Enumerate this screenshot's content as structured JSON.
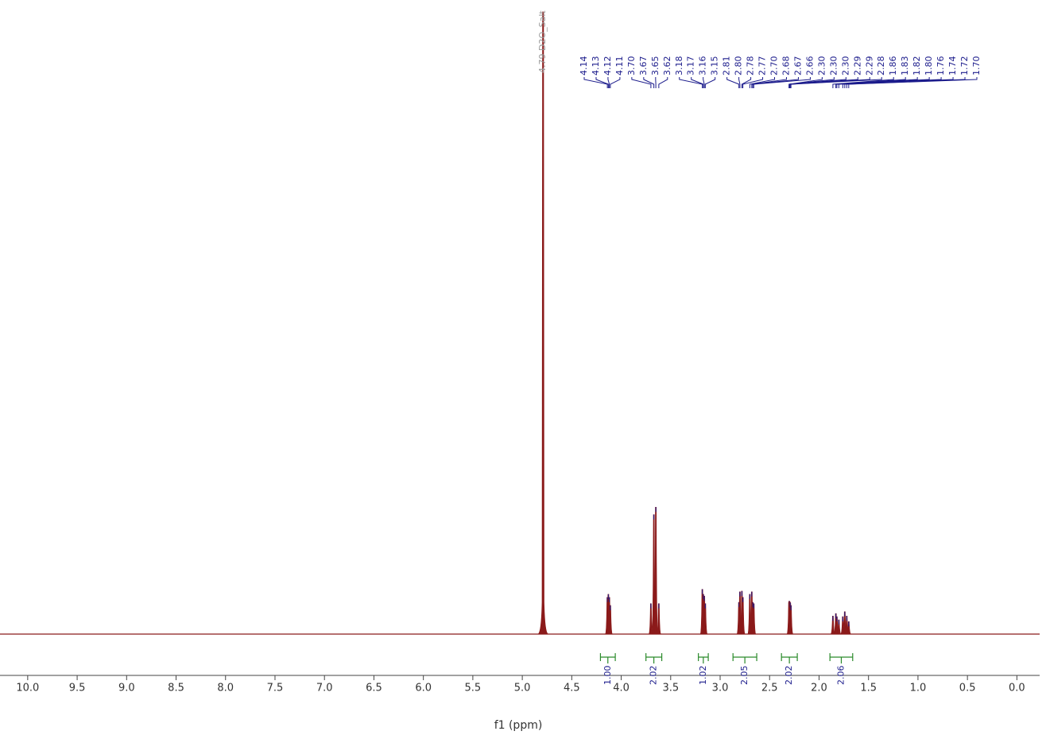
{
  "chart_data": {
    "type": "nmr",
    "xlabel": "f1 (ppm)",
    "xlim": [
      10.28,
      -0.23
    ],
    "xticks": [
      {
        "value": 10,
        "label": "10.0"
      },
      9.5,
      {
        "value": 9,
        "label": "9.0"
      },
      8.5,
      {
        "value": 8,
        "label": "8.0"
      },
      7.5,
      {
        "value": 7,
        "label": "7.0"
      },
      6.5,
      {
        "value": 6,
        "label": "6.0"
      },
      5.5,
      {
        "value": 5,
        "label": "5.0"
      },
      4.5,
      {
        "value": 4,
        "label": "4.0"
      },
      3.5,
      {
        "value": 3,
        "label": "3.0"
      },
      2.5,
      {
        "value": 2,
        "label": "2.0"
      },
      1.5,
      {
        "value": 1,
        "label": "1.0"
      },
      0.5,
      {
        "value": 0,
        "label": "0.0"
      }
    ],
    "ylim": [
      0,
      100
    ],
    "color": "#8b1a1a",
    "label_color": "#1c1c8c",
    "integral_color": "#2a8a2a",
    "solvent_color": "#999999",
    "solvent": {
      "x": 4.79,
      "value": 100,
      "label": "4.79 D2O_Salt"
    },
    "peaks": {
      "x": [
        4.14,
        4.13,
        4.12,
        4.11,
        3.7,
        3.67,
        3.65,
        3.62,
        3.18,
        3.17,
        3.16,
        3.15,
        2.81,
        2.8,
        2.78,
        2.77,
        2.7,
        2.68,
        2.67,
        2.66,
        2.304,
        2.301,
        2.298,
        2.294,
        2.291,
        2.284,
        1.86,
        1.83,
        1.82,
        1.8,
        1.76,
        1.74,
        1.72,
        1.7
      ],
      "values": [
        5.9,
        6.4,
        5.9,
        4.6,
        4.9,
        19.2,
        20.4,
        4.9,
        7.2,
        6.4,
        6.1,
        4.9,
        5.1,
        6.8,
        6.9,
        5.9,
        6.4,
        6.8,
        5.1,
        4.9,
        5.1,
        5.3,
        5.2,
        5.1,
        5.0,
        4.6,
        2.9,
        3.3,
        2.8,
        2.3,
        2.8,
        3.6,
        2.9,
        2.0
      ],
      "labels": [
        "4.14",
        "4.13",
        "4.12",
        "4.11",
        "3.70",
        "3.67",
        "3.65",
        "3.62",
        "3.18",
        "3.17",
        "3.16",
        "3.15",
        "2.81",
        "2.80",
        "2.78",
        "2.77",
        "2.70",
        "2.68",
        "2.67",
        "2.66",
        "2.30",
        "2.30",
        "2.30",
        "2.29",
        "2.29",
        "2.28",
        "1.86",
        "1.83",
        "1.82",
        "1.80",
        "1.76",
        "1.74",
        "1.72",
        "1.70"
      ]
    },
    "integrals": {
      "ranges": [
        [
          4.21,
          4.06
        ],
        [
          3.75,
          3.59
        ],
        [
          3.22,
          3.12
        ],
        [
          2.87,
          2.63
        ],
        [
          2.38,
          2.22
        ],
        [
          1.89,
          1.66
        ]
      ],
      "values": [
        1.0,
        2.02,
        1.02,
        2.05,
        2.02,
        2.06
      ],
      "value_labels": [
        "1.00",
        "2.02",
        "1.02",
        "2.05",
        "2.02",
        "2.06"
      ]
    }
  }
}
